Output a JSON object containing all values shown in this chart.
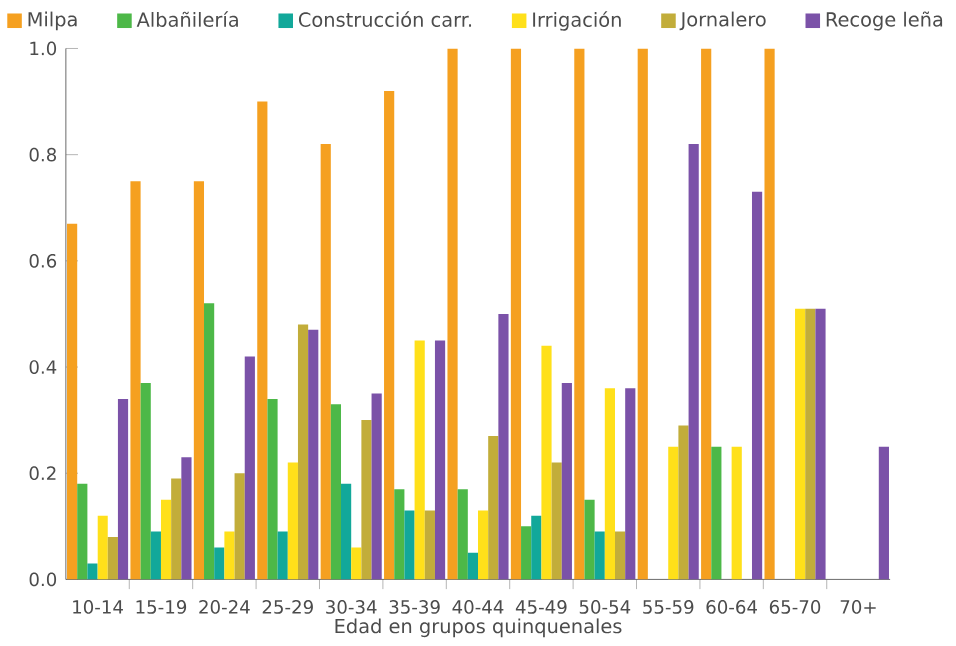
{
  "chart_data": {
    "type": "bar",
    "xlabel": "Edad en grupos quinquenales",
    "categories": [
      "10-14",
      "15-19",
      "20-24",
      "25-29",
      "30-34",
      "35-39",
      "40-44",
      "45-49",
      "50-54",
      "55-59",
      "60-64",
      "65-70",
      "70+"
    ],
    "series": [
      {
        "name": "Milpa",
        "color": "#f5a020",
        "values": [
          0.67,
          0.75,
          0.75,
          0.9,
          0.82,
          0.92,
          1.0,
          1.0,
          1.0,
          1.0,
          1.0,
          1.0,
          0
        ]
      },
      {
        "name": "Albañilería",
        "color": "#4db848",
        "values": [
          0.18,
          0.37,
          0.52,
          0.34,
          0.33,
          0.17,
          0.17,
          0.1,
          0.15,
          0,
          0.25,
          0,
          0
        ]
      },
      {
        "name": "Construcción carr.",
        "color": "#12a89a",
        "values": [
          0.03,
          0.09,
          0.06,
          0.09,
          0.18,
          0.13,
          0.05,
          0.12,
          0.09,
          0,
          0,
          0,
          0
        ]
      },
      {
        "name": "Irrigación",
        "color": "#ffe01a",
        "values": [
          0.12,
          0.15,
          0.09,
          0.22,
          0.06,
          0.45,
          0.13,
          0.44,
          0.36,
          0.25,
          0.25,
          0.51,
          0
        ]
      },
      {
        "name": "Jornalero",
        "color": "#c2ad3a",
        "values": [
          0.08,
          0.19,
          0.2,
          0.48,
          0.3,
          0.13,
          0.27,
          0.22,
          0.09,
          0.29,
          0,
          0.51,
          0
        ]
      },
      {
        "name": "Recoge leña",
        "color": "#7b52a8",
        "values": [
          0.34,
          0.23,
          0.42,
          0.47,
          0.35,
          0.45,
          0.5,
          0.37,
          0.36,
          0.82,
          0.73,
          0.51,
          0.25
        ]
      }
    ],
    "ylim": [
      0,
      1.0
    ],
    "yticks": [
      {
        "value": 0,
        "label": "0.0"
      },
      {
        "value": 0.2,
        "label": "0.2"
      },
      {
        "value": 0.4,
        "label": "0.4"
      },
      {
        "value": 0.6,
        "label": "0.6"
      },
      {
        "value": 0.8,
        "label": "0.8"
      },
      {
        "value": 1.0,
        "label": "1.0"
      }
    ],
    "legend": "top",
    "grid": false
  }
}
